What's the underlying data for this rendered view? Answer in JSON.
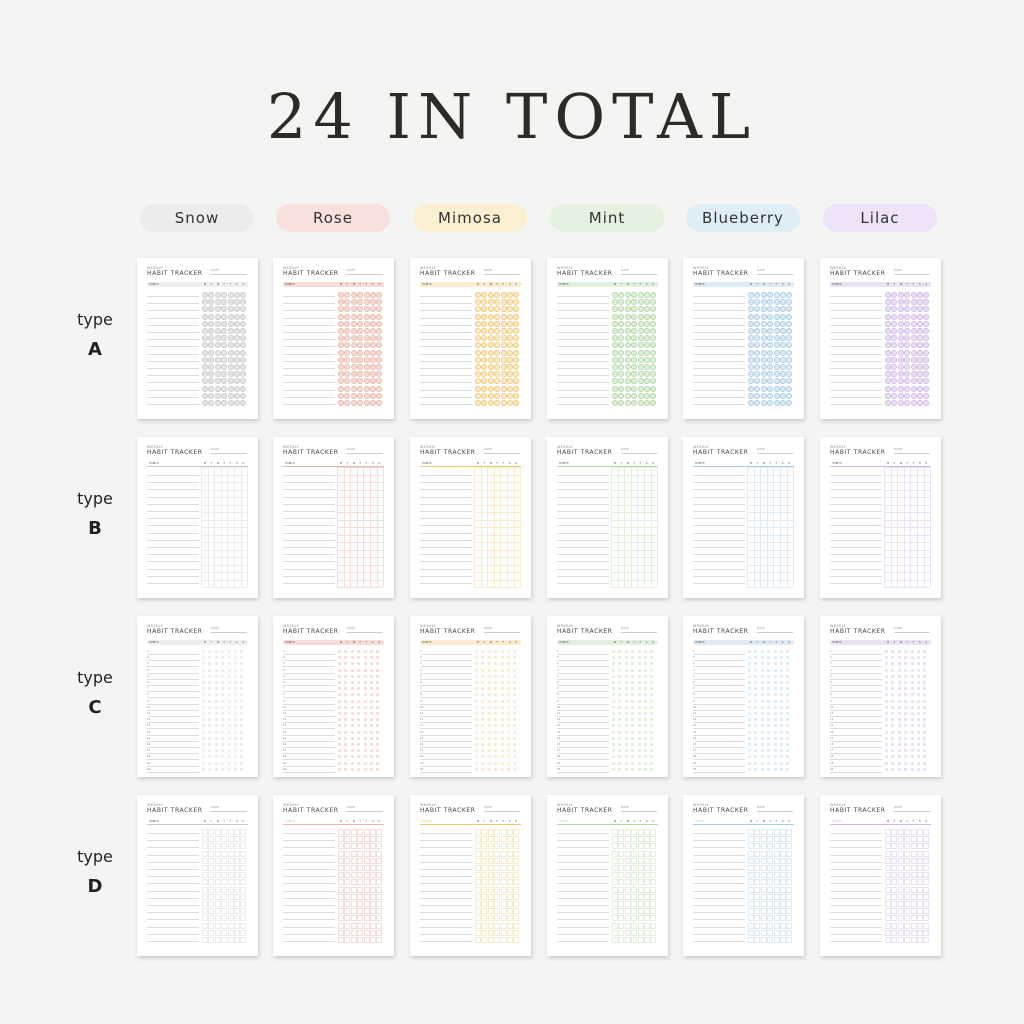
{
  "title": "24 IN TOTAL",
  "palettes": [
    {
      "name": "Snow",
      "pill": "#ececec",
      "accent": "#c9c9c9",
      "light": "#ececec"
    },
    {
      "name": "Rose",
      "pill": "#f8e1dd",
      "accent": "#ebb6ab",
      "light": "#f6dcd6"
    },
    {
      "name": "Mimosa",
      "pill": "#fbefd2",
      "accent": "#f1c872",
      "light": "#f9ebcc"
    },
    {
      "name": "Mint",
      "pill": "#e4f2e0",
      "accent": "#b2d8a6",
      "light": "#e0f0da"
    },
    {
      "name": "Blueberry",
      "pill": "#deedf6",
      "accent": "#abcde4",
      "light": "#dcebf5"
    },
    {
      "name": "Lilac",
      "pill": "#efe3f7",
      "accent": "#d2b6e6",
      "light": "#ece0f5"
    }
  ],
  "types": [
    {
      "prefix": "type",
      "letter": "A"
    },
    {
      "prefix": "type",
      "letter": "B"
    },
    {
      "prefix": "type",
      "letter": "C"
    },
    {
      "prefix": "type",
      "letter": "D"
    }
  ],
  "card": {
    "kicker": "WEEKLY",
    "heading": "HABIT TRACKER",
    "date_label": "DATE",
    "habits_label": "HABITS",
    "days": [
      "M",
      "T",
      "W",
      "T",
      "F",
      "S",
      "S"
    ],
    "row_numbers": [
      "1",
      "2",
      "3",
      "4",
      "5",
      "6",
      "7",
      "8",
      "9",
      "10",
      "11",
      "12",
      "13",
      "14",
      "15",
      "16",
      "17",
      "18",
      "19",
      "20"
    ]
  }
}
